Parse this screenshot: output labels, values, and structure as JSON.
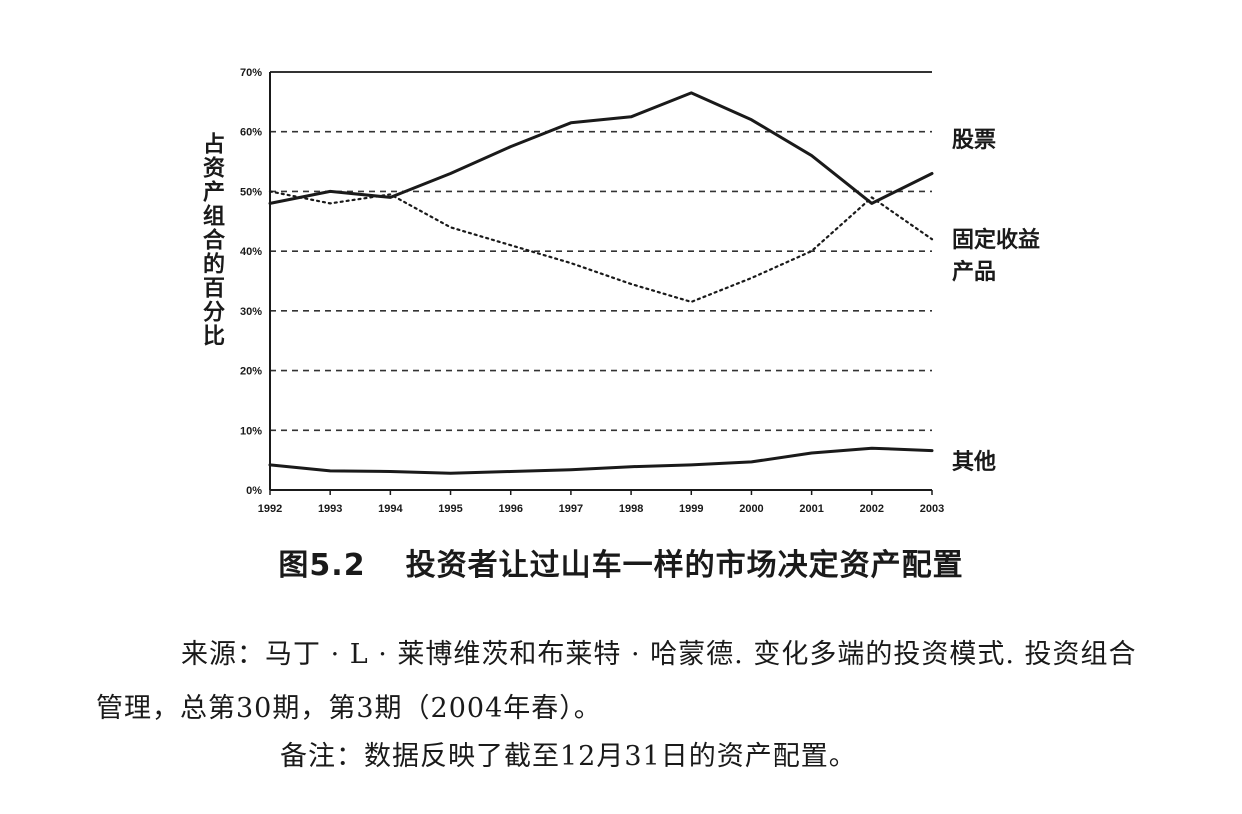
{
  "chart_data": {
    "type": "line",
    "x": [
      1992,
      1993,
      1994,
      1995,
      1996,
      1997,
      1998,
      1999,
      2000,
      2001,
      2002,
      2003
    ],
    "ylim": [
      0,
      70
    ],
    "y_ticks": [
      "0%",
      "10%",
      "20%",
      "30%",
      "40%",
      "50%",
      "60%",
      "70%"
    ],
    "x_ticks": [
      "1992",
      "1993",
      "1994",
      "1995",
      "1996",
      "1997",
      "1998",
      "1999",
      "2000",
      "2001",
      "2002",
      "2003"
    ],
    "ylabel": "占资产组合的百分比",
    "grid": "horizontal dashed",
    "series": [
      {
        "name": "股票",
        "style": "solid",
        "values": [
          48,
          50,
          49,
          53,
          57.5,
          61.5,
          62.5,
          66.5,
          62,
          56,
          48,
          53
        ]
      },
      {
        "name": "固定收益产品",
        "style": "dotted",
        "values": [
          50,
          48,
          49.5,
          44,
          41,
          38,
          34.5,
          31.5,
          35.5,
          40,
          49,
          42
        ]
      },
      {
        "name": "其他",
        "style": "solid",
        "values": [
          4.2,
          3.2,
          3.1,
          2.8,
          3.1,
          3.4,
          3.9,
          4.2,
          4.7,
          6.2,
          7.0,
          6.6
        ]
      }
    ],
    "series_labels": [
      "股票",
      "固定收益",
      "产品",
      "其他"
    ]
  },
  "figure": {
    "number": "图5.2",
    "title": "投资者让过山车一样的市场决定资产配置",
    "source": "来源：马丁 · L · 莱博维茨和布莱特 · 哈蒙德. 变化多端的投资模式. 投资组合管理，总第30期，第3期（2004年春）。",
    "note": "备注：数据反映了截至12月31日的资产配置。"
  },
  "colors": {
    "line": "#1a1a1a",
    "grid": "#333333",
    "background": "#ffffff"
  }
}
